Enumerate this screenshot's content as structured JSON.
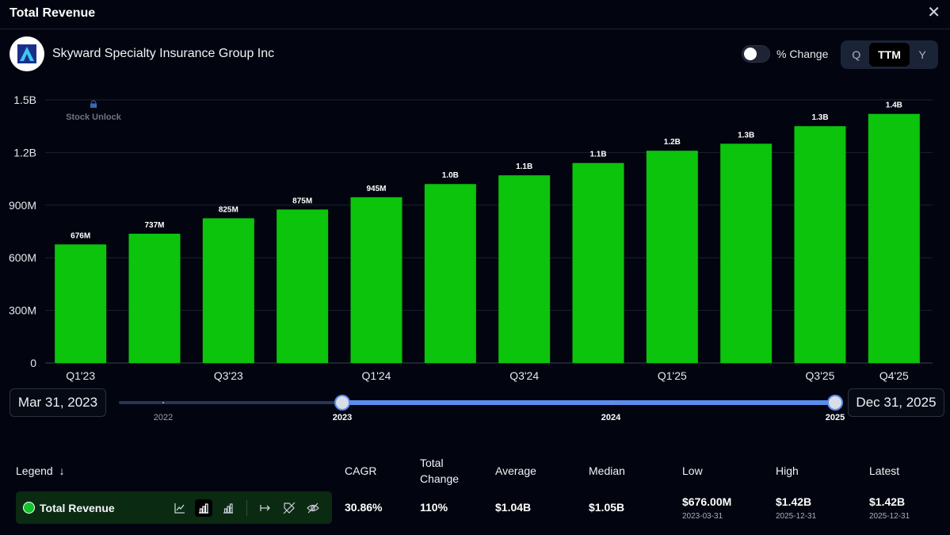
{
  "header": {
    "title": "Total Revenue",
    "close_label": "✕"
  },
  "company": {
    "name": "Skyward Specialty Insurance Group Inc"
  },
  "controls": {
    "pct_change_label": "% Change",
    "period_options": [
      "Q",
      "TTM",
      "Y"
    ],
    "period_selected": "TTM"
  },
  "watermark": {
    "text": "Stock Unlock"
  },
  "chart_data": {
    "type": "bar",
    "title": "Total Revenue",
    "categories": [
      "Q1'23",
      "Q2'23",
      "Q3'23",
      "Q4'23",
      "Q1'24",
      "Q2'24",
      "Q3'24",
      "Q4'24",
      "Q1'25",
      "Q2'25",
      "Q3'25",
      "Q4'25"
    ],
    "x_tick_labels": [
      "Q1'23",
      "",
      "Q3'23",
      "",
      "Q1'24",
      "",
      "Q3'24",
      "",
      "Q1'25",
      "",
      "Q3'25",
      "Q4'25"
    ],
    "values": [
      676000000,
      737000000,
      825000000,
      875000000,
      945000000,
      1020000000,
      1070000000,
      1140000000,
      1210000000,
      1250000000,
      1350000000,
      1420000000
    ],
    "data_labels": [
      "676M",
      "737M",
      "825M",
      "875M",
      "945M",
      "1.0B",
      "1.1B",
      "1.1B",
      "1.2B",
      "1.3B",
      "1.3B",
      "1.4B"
    ],
    "y_ticks": [
      0,
      300000000,
      600000000,
      900000000,
      1200000000,
      1500000000
    ],
    "y_tick_labels": [
      "0",
      "300M",
      "600M",
      "900M",
      "1.2B",
      "1.5B"
    ],
    "ylim": [
      0,
      1500000000
    ],
    "grid": true,
    "bar_color": "#0bc40b"
  },
  "range": {
    "start_date": "Mar 31, 2023",
    "end_date": "Dec 31, 2025",
    "years": [
      "2022",
      "2023",
      "2024",
      "2025"
    ]
  },
  "legend": {
    "header": "Legend",
    "sort_icon": "arrow-down-icon",
    "series_name": "Total Revenue",
    "series_color": "#12c42a"
  },
  "stats": {
    "headers": {
      "cagr": "CAGR",
      "total_change": "Total Change",
      "average": "Average",
      "median": "Median",
      "low": "Low",
      "high": "High",
      "latest": "Latest"
    },
    "values": {
      "cagr": "30.86%",
      "total_change": "110%",
      "average": "$1.04B",
      "median": "$1.05B",
      "low": "$676.00M",
      "high": "$1.42B",
      "latest": "$1.42B"
    },
    "dates": {
      "low": "2023-03-31",
      "high": "2025-12-31",
      "latest": "2025-12-31"
    }
  }
}
